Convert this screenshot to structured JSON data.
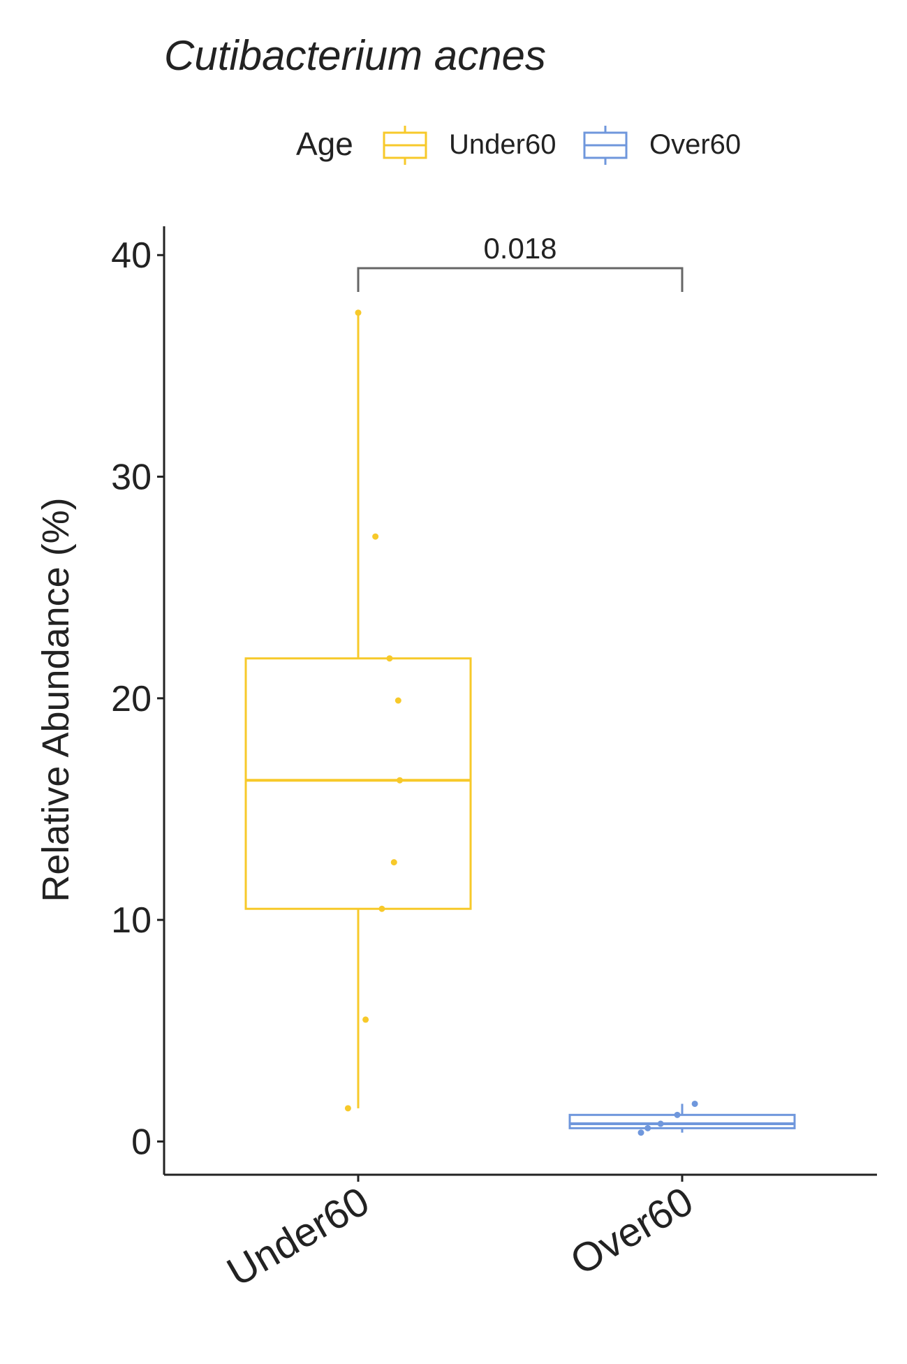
{
  "chart_data": {
    "type": "boxplot",
    "title": "Cutibacterium acnes",
    "y_label": "Relative Abundance (%)",
    "legend_title": "Age",
    "categories": [
      "Under60",
      "Over60"
    ],
    "series": [
      {
        "name": "Under60",
        "color": "#f7c92a",
        "whisker_low": 1.5,
        "q1": 10.5,
        "median": 16.3,
        "q3": 21.8,
        "whisker_high": 37.4,
        "points": [
          37.4,
          27.3,
          21.8,
          19.9,
          16.3,
          12.6,
          10.5,
          5.5,
          1.5
        ]
      },
      {
        "name": "Over60",
        "color": "#6f97dc",
        "whisker_low": 0.4,
        "q1": 0.6,
        "median": 0.8,
        "q3": 1.2,
        "whisker_high": 1.7,
        "points": [
          1.7,
          1.2,
          0.8,
          0.6,
          0.4
        ]
      }
    ],
    "annotations": [
      {
        "text": "0.018",
        "from": 0,
        "to": 1
      }
    ],
    "ylim": [
      -1.5,
      41.3
    ],
    "yticks": [
      0,
      10,
      20,
      30,
      40
    ]
  }
}
